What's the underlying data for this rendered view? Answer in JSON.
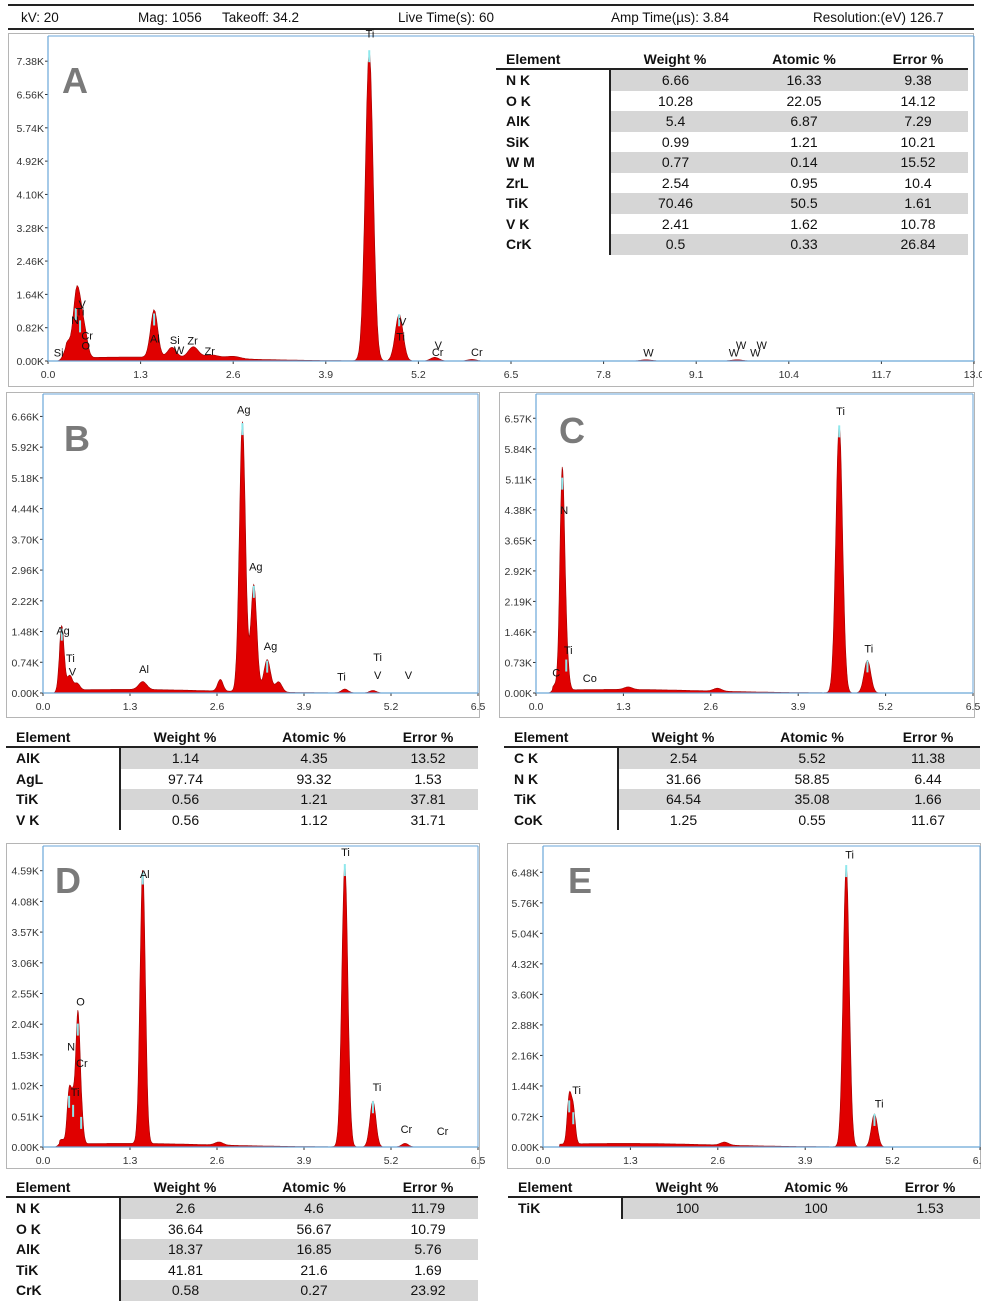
{
  "header": {
    "kv": "kV: 20",
    "mag": "Mag: 1056",
    "takeoff": "Takeoff: 34.2",
    "live_time": "Live Time(s): 60",
    "amp_time": "Amp Time(µs): 3.84",
    "resolution": "Resolution:(eV) 126.7"
  },
  "colors": {
    "spectrum_fill": "#e00000",
    "peak_tip": "#8ee8ec",
    "axis": "#6aa6d8",
    "table_shade": "#d6d6d6"
  },
  "chart_data": [
    {
      "id": "A",
      "type": "area",
      "title": "A",
      "xlim": [
        0,
        13.0
      ],
      "ylim": [
        0,
        8000
      ],
      "xticks": [
        "0.0",
        "1.3",
        "2.6",
        "3.9",
        "5.2",
        "6.5",
        "7.8",
        "9.1",
        "10.4",
        "11.7",
        "13.0"
      ],
      "yticks": [
        "0.00K",
        "0.82K",
        "1.64K",
        "2.46K",
        "3.28K",
        "4.10K",
        "4.92K",
        "5.74K",
        "6.56K",
        "7.38K"
      ],
      "peaks": [
        {
          "x": 0.28,
          "y": 400,
          "w": 0.05
        },
        {
          "x": 0.39,
          "y": 1300,
          "w": 0.04
        },
        {
          "x": 0.45,
          "y": 1000,
          "w": 0.04
        },
        {
          "x": 0.52,
          "y": 550,
          "w": 0.04
        },
        {
          "x": 1.49,
          "y": 1170,
          "w": 0.05
        },
        {
          "x": 1.74,
          "y": 250,
          "w": 0.06
        },
        {
          "x": 2.04,
          "y": 270,
          "w": 0.07
        },
        {
          "x": 2.3,
          "y": 80,
          "w": 0.1
        },
        {
          "x": 2.6,
          "y": 60,
          "w": 0.1
        },
        {
          "x": 4.51,
          "y": 7650,
          "w": 0.055
        },
        {
          "x": 4.93,
          "y": 1150,
          "w": 0.055
        },
        {
          "x": 5.43,
          "y": 90,
          "w": 0.06
        },
        {
          "x": 5.95,
          "y": 40,
          "w": 0.06
        },
        {
          "x": 8.4,
          "y": 30,
          "w": 0.08
        },
        {
          "x": 9.67,
          "y": 30,
          "w": 0.08
        }
      ],
      "labels": [
        {
          "t": "Si",
          "x": 0.15,
          "y": 110
        },
        {
          "t": "O",
          "x": 0.53,
          "y": 280
        },
        {
          "t": "Cr",
          "x": 0.55,
          "y": 530
        },
        {
          "t": "N",
          "x": 0.38,
          "y": 910
        },
        {
          "t": "Ti",
          "x": 0.45,
          "y": 1120
        },
        {
          "t": "V",
          "x": 0.48,
          "y": 1300
        },
        {
          "t": "Al",
          "x": 1.5,
          "y": 450
        },
        {
          "t": "Si",
          "x": 1.78,
          "y": 420
        },
        {
          "t": "W",
          "x": 1.84,
          "y": 170
        },
        {
          "t": "Zr",
          "x": 2.03,
          "y": 410
        },
        {
          "t": "Zr",
          "x": 2.27,
          "y": 150
        },
        {
          "t": "Ti",
          "x": 4.52,
          "y": 7960
        },
        {
          "t": "V",
          "x": 4.98,
          "y": 870
        },
        {
          "t": "Ti",
          "x": 4.95,
          "y": 500
        },
        {
          "t": "V",
          "x": 5.48,
          "y": 300
        },
        {
          "t": "Cr",
          "x": 5.47,
          "y": 120
        },
        {
          "t": "Cr",
          "x": 6.02,
          "y": 120
        },
        {
          "t": "W",
          "x": 8.43,
          "y": 110
        },
        {
          "t": "W",
          "x": 9.63,
          "y": 110
        },
        {
          "t": "W",
          "x": 9.93,
          "y": 110
        },
        {
          "t": "W",
          "x": 9.73,
          "y": 290
        },
        {
          "t": "W",
          "x": 10.02,
          "y": 290
        }
      ]
    },
    {
      "id": "B",
      "type": "area",
      "title": "B",
      "xlim": [
        0,
        6.5
      ],
      "ylim": [
        0,
        7200
      ],
      "xticks": [
        "0.0",
        "1.3",
        "2.6",
        "3.9",
        "5.2",
        "6.5"
      ],
      "yticks": [
        "0.00K",
        "0.74K",
        "1.48K",
        "2.22K",
        "2.96K",
        "3.70K",
        "4.44K",
        "5.18K",
        "5.92K",
        "6.66K"
      ],
      "peaks": [
        {
          "x": 0.28,
          "y": 1550,
          "w": 0.035
        },
        {
          "x": 0.4,
          "y": 350,
          "w": 0.04
        },
        {
          "x": 0.51,
          "y": 160,
          "w": 0.04
        },
        {
          "x": 1.49,
          "y": 190,
          "w": 0.06
        },
        {
          "x": 2.65,
          "y": 280,
          "w": 0.04
        },
        {
          "x": 2.98,
          "y": 6500,
          "w": 0.045
        },
        {
          "x": 3.15,
          "y": 2580,
          "w": 0.045
        },
        {
          "x": 3.35,
          "y": 780,
          "w": 0.05
        },
        {
          "x": 3.52,
          "y": 250,
          "w": 0.05
        },
        {
          "x": 4.51,
          "y": 90,
          "w": 0.05
        },
        {
          "x": 4.93,
          "y": 60,
          "w": 0.05
        }
      ],
      "labels": [
        {
          "t": "Ag",
          "x": 0.3,
          "y": 1410
        },
        {
          "t": "Ti",
          "x": 0.41,
          "y": 750
        },
        {
          "t": "V",
          "x": 0.44,
          "y": 420
        },
        {
          "t": "Al",
          "x": 1.51,
          "y": 480
        },
        {
          "t": "Ag",
          "x": 3.0,
          "y": 6730
        },
        {
          "t": "Ag",
          "x": 3.18,
          "y": 2950
        },
        {
          "t": "Ag",
          "x": 3.4,
          "y": 1040
        },
        {
          "t": "Ti",
          "x": 4.46,
          "y": 300
        },
        {
          "t": "Ti",
          "x": 5.0,
          "y": 770
        },
        {
          "t": "V",
          "x": 5.0,
          "y": 340
        },
        {
          "t": "V",
          "x": 5.46,
          "y": 340
        }
      ]
    },
    {
      "id": "C",
      "type": "area",
      "title": "C",
      "xlim": [
        0,
        6.5
      ],
      "ylim": [
        0,
        7150
      ],
      "xticks": [
        "0.0",
        "1.3",
        "2.6",
        "3.9",
        "5.2",
        "6.5"
      ],
      "yticks": [
        "0.00K",
        "0.73K",
        "1.46K",
        "2.19K",
        "2.92K",
        "3.65K",
        "4.38K",
        "5.11K",
        "5.84K",
        "6.57K"
      ],
      "peaks": [
        {
          "x": 0.28,
          "y": 120,
          "w": 0.035
        },
        {
          "x": 0.39,
          "y": 5150,
          "w": 0.035
        },
        {
          "x": 0.45,
          "y": 800,
          "w": 0.035
        },
        {
          "x": 1.37,
          "y": 60,
          "w": 0.06
        },
        {
          "x": 2.7,
          "y": 70,
          "w": 0.06
        },
        {
          "x": 4.51,
          "y": 6400,
          "w": 0.05
        },
        {
          "x": 4.93,
          "y": 780,
          "w": 0.05
        }
      ],
      "labels": [
        {
          "t": "C",
          "x": 0.3,
          "y": 400
        },
        {
          "t": "N",
          "x": 0.42,
          "y": 4280
        },
        {
          "t": "Ti",
          "x": 0.48,
          "y": 930
        },
        {
          "t": "Co",
          "x": 0.8,
          "y": 260
        },
        {
          "t": "Ti",
          "x": 4.53,
          "y": 6650
        },
        {
          "t": "Ti",
          "x": 4.95,
          "y": 970
        }
      ]
    },
    {
      "id": "D",
      "type": "area",
      "title": "D",
      "xlim": [
        0,
        6.5
      ],
      "ylim": [
        0,
        5000
      ],
      "xticks": [
        "0.0",
        "1.3",
        "2.6",
        "3.9",
        "5.2",
        "6.5"
      ],
      "yticks": [
        "0.00K",
        "0.51K",
        "1.02K",
        "1.53K",
        "2.04K",
        "2.55K",
        "3.06K",
        "3.57K",
        "4.08K",
        "4.59K"
      ],
      "peaks": [
        {
          "x": 0.28,
          "y": 80,
          "w": 0.04
        },
        {
          "x": 0.39,
          "y": 850,
          "w": 0.03
        },
        {
          "x": 0.45,
          "y": 700,
          "w": 0.03
        },
        {
          "x": 0.52,
          "y": 2050,
          "w": 0.03
        },
        {
          "x": 0.57,
          "y": 500,
          "w": 0.03
        },
        {
          "x": 1.49,
          "y": 4560,
          "w": 0.04
        },
        {
          "x": 2.63,
          "y": 50,
          "w": 0.06
        },
        {
          "x": 4.51,
          "y": 4700,
          "w": 0.045
        },
        {
          "x": 4.93,
          "y": 760,
          "w": 0.045
        },
        {
          "x": 5.41,
          "y": 60,
          "w": 0.05
        }
      ],
      "labels": [
        {
          "t": "Ti",
          "x": 0.48,
          "y": 850
        },
        {
          "t": "N",
          "x": 0.42,
          "y": 1600
        },
        {
          "t": "Cr",
          "x": 0.58,
          "y": 1330
        },
        {
          "t": "O",
          "x": 0.56,
          "y": 2350
        },
        {
          "t": "Al",
          "x": 1.52,
          "y": 4470
        },
        {
          "t": "Ti",
          "x": 4.52,
          "y": 4830
        },
        {
          "t": "Ti",
          "x": 4.99,
          "y": 930
        },
        {
          "t": "Cr",
          "x": 5.43,
          "y": 230
        },
        {
          "t": "Cr",
          "x": 5.97,
          "y": 200
        }
      ]
    },
    {
      "id": "E",
      "type": "area",
      "title": "E",
      "xlim": [
        0,
        6.5
      ],
      "ylim": [
        0,
        7100
      ],
      "xticks": [
        "0.0",
        "1.3",
        "2.6",
        "3.9",
        "5.2",
        "6.5"
      ],
      "yticks": [
        "0.00K",
        "0.72K",
        "1.44K",
        "2.16K",
        "2.88K",
        "3.60K",
        "4.32K",
        "5.04K",
        "5.76K",
        "6.48K"
      ],
      "peaks": [
        {
          "x": 0.39,
          "y": 1100,
          "w": 0.03
        },
        {
          "x": 0.45,
          "y": 820,
          "w": 0.03
        },
        {
          "x": 2.7,
          "y": 70,
          "w": 0.06
        },
        {
          "x": 4.51,
          "y": 6650,
          "w": 0.045
        },
        {
          "x": 4.93,
          "y": 780,
          "w": 0.045
        }
      ],
      "labels": [
        {
          "t": "Ti",
          "x": 0.5,
          "y": 1250
        },
        {
          "t": "Ti",
          "x": 4.56,
          "y": 6800
        },
        {
          "t": "Ti",
          "x": 5.0,
          "y": 930
        }
      ]
    }
  ],
  "tables": {
    "headers": [
      "Element",
      "Weight %",
      "Atomic %",
      "Error %"
    ],
    "A": [
      [
        "N K",
        "6.66",
        "16.33",
        "9.38"
      ],
      [
        "O K",
        "10.28",
        "22.05",
        "14.12"
      ],
      [
        "AlK",
        "5.4",
        "6.87",
        "7.29"
      ],
      [
        "SiK",
        "0.99",
        "1.21",
        "10.21"
      ],
      [
        "W M",
        "0.77",
        "0.14",
        "15.52"
      ],
      [
        "ZrL",
        "2.54",
        "0.95",
        "10.4"
      ],
      [
        "TiK",
        "70.46",
        "50.5",
        "1.61"
      ],
      [
        "V K",
        "2.41",
        "1.62",
        "10.78"
      ],
      [
        "CrK",
        "0.5",
        "0.33",
        "26.84"
      ]
    ],
    "B": [
      [
        "AlK",
        "1.14",
        "4.35",
        "13.52"
      ],
      [
        "AgL",
        "97.74",
        "93.32",
        "1.53"
      ],
      [
        "TiK",
        "0.56",
        "1.21",
        "37.81"
      ],
      [
        "V K",
        "0.56",
        "1.12",
        "31.71"
      ]
    ],
    "C": [
      [
        "C K",
        "2.54",
        "5.52",
        "11.38"
      ],
      [
        "N K",
        "31.66",
        "58.85",
        "6.44"
      ],
      [
        "TiK",
        "64.54",
        "35.08",
        "1.66"
      ],
      [
        "CoK",
        "1.25",
        "0.55",
        "11.67"
      ]
    ],
    "D": [
      [
        "N K",
        "2.6",
        "4.6",
        "11.79"
      ],
      [
        "O K",
        "36.64",
        "56.67",
        "10.79"
      ],
      [
        "AlK",
        "18.37",
        "16.85",
        "5.76"
      ],
      [
        "TiK",
        "41.81",
        "21.6",
        "1.69"
      ],
      [
        "CrK",
        "0.58",
        "0.27",
        "23.92"
      ]
    ],
    "E": [
      [
        "TiK",
        "100",
        "100",
        "1.53"
      ]
    ]
  }
}
